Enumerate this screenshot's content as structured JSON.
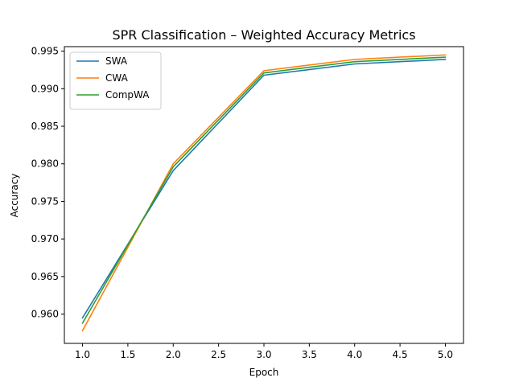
{
  "chart_data": {
    "type": "line",
    "title": "SPR Classification – Weighted Accuracy Metrics",
    "xlabel": "Epoch",
    "ylabel": "Accuracy",
    "xlim": [
      0.8,
      5.2
    ],
    "ylim": [
      0.9561,
      0.9956
    ],
    "xticks": [
      1.0,
      1.5,
      2.0,
      2.5,
      3.0,
      3.5,
      4.0,
      4.5,
      5.0
    ],
    "xtick_labels": [
      "1.0",
      "1.5",
      "2.0",
      "2.5",
      "3.0",
      "3.5",
      "4.0",
      "4.5",
      "5.0"
    ],
    "yticks": [
      0.96,
      0.965,
      0.97,
      0.975,
      0.98,
      0.985,
      0.99,
      0.995
    ],
    "ytick_labels": [
      "0.960",
      "0.965",
      "0.970",
      "0.975",
      "0.980",
      "0.985",
      "0.990",
      "0.995"
    ],
    "x": [
      1,
      2,
      3,
      4,
      5
    ],
    "grid": false,
    "legend_position": "top-left",
    "series": [
      {
        "name": "SWA",
        "color": "#1f77b4",
        "values": [
          0.9595,
          0.9791,
          0.9918,
          0.9933,
          0.9939
        ]
      },
      {
        "name": "CWA",
        "color": "#ff7f0e",
        "values": [
          0.9578,
          0.98,
          0.9924,
          0.9939,
          0.9945
        ]
      },
      {
        "name": "CompWA",
        "color": "#2ca02c",
        "values": [
          0.9588,
          0.9796,
          0.9921,
          0.9936,
          0.9942
        ]
      }
    ]
  }
}
